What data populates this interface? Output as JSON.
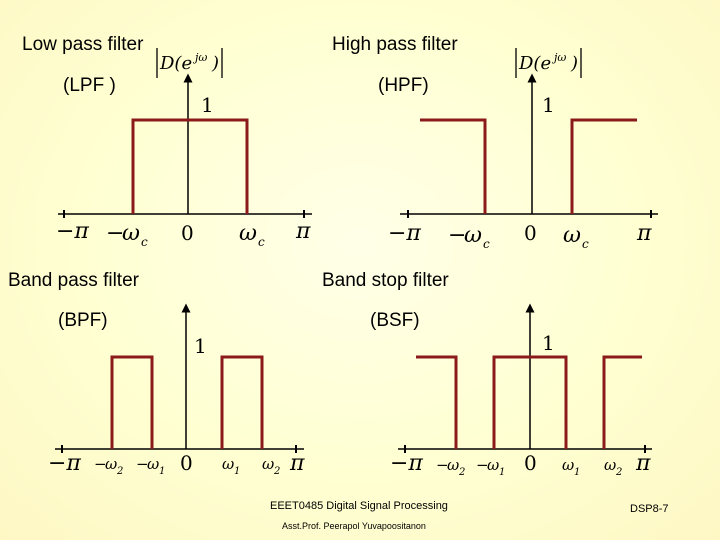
{
  "panels": {
    "lpf": {
      "name": "Low pass filter",
      "abbr": "(LPF )"
    },
    "hpf": {
      "name": "High pass filter",
      "abbr": "(HPF)"
    },
    "bpf": {
      "name": "Band pass filter",
      "abbr": "(BPF)"
    },
    "bsf": {
      "name": "Band stop filter",
      "abbr": "(BSF)"
    }
  },
  "axis": {
    "ylabel_main": "D(e",
    "ylabel_sup": "jω",
    "ylabel_close": ")",
    "one": "1",
    "zero": "0",
    "neg_pi": "−π",
    "pi": "π",
    "neg_sign": "−",
    "omega": "ω",
    "c": "c",
    "one_sub": "1",
    "two_sub": "2"
  },
  "footer": {
    "course": "EEET0485 Digital Signal Processing",
    "author": "Asst.Prof. Peerapol Yuvapoositanon",
    "slide": "DSP8-7"
  },
  "colors": {
    "line": "#8b1a1a",
    "axis": "#000000"
  }
}
